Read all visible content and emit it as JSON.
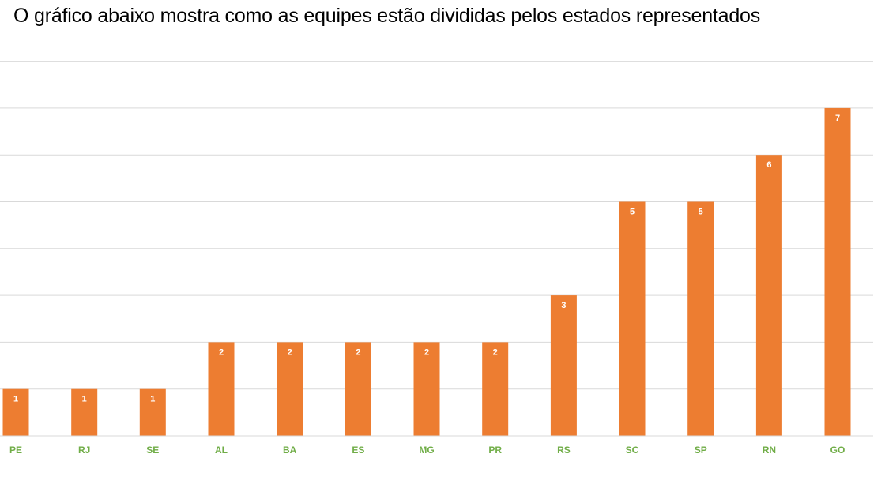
{
  "title": "O gráfico abaixo mostra como as equipes estão divididas pelos estados representados",
  "colors": {
    "bar": "#ed7d31",
    "bar_label": "#ffffff",
    "tick_label": "#70ad47",
    "grid": "#d9d9d9",
    "axis": "#d9d9d9"
  },
  "chart_data": {
    "type": "bar",
    "title": "",
    "xlabel": "",
    "ylabel": "",
    "categories": [
      "PE",
      "RJ",
      "SE",
      "AL",
      "BA",
      "ES",
      "MG",
      "PR",
      "RS",
      "SC",
      "SP",
      "RN",
      "GO"
    ],
    "values": [
      1,
      1,
      1,
      2,
      2,
      2,
      2,
      2,
      3,
      5,
      5,
      6,
      7
    ],
    "ylim": [
      0,
      8
    ],
    "grid": true,
    "legend": "none",
    "data_labels": true
  }
}
